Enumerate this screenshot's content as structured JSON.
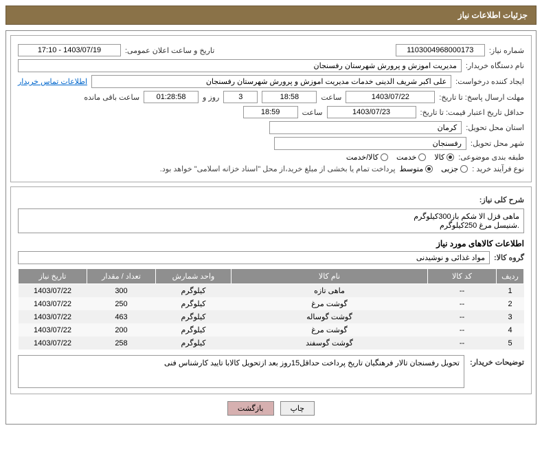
{
  "header": {
    "title": "جزئیات اطلاعات نیاز"
  },
  "fields": {
    "need_no_label": "شماره نیاز:",
    "need_no": "1103004968000173",
    "announce_label": "تاریخ و ساعت اعلان عمومی:",
    "announce_value": "1403/07/19 - 17:10",
    "buyer_org_label": "نام دستگاه خریدار:",
    "buyer_org": "مدیریت اموزش و پرورش شهرستان رفسنجان",
    "requester_label": "ایجاد کننده درخواست:",
    "requester": "علی اکبر شریف الدینی خدمات مدیریت اموزش و پرورش شهرستان رفسنجان",
    "contact_link": "اطلاعات تماس خریدار",
    "reply_deadline_label": "مهلت ارسال پاسخ: تا تاریخ:",
    "reply_date": "1403/07/22",
    "time_label": "ساعت",
    "reply_time": "18:58",
    "days": "3",
    "days_and": "روز و",
    "remaining": "01:28:58",
    "remaining_label": "ساعت باقی مانده",
    "validity_label": "حداقل تاریخ اعتبار قیمت: تا تاریخ:",
    "validity_date": "1403/07/23",
    "validity_time": "18:59",
    "province_label": "استان محل تحویل:",
    "province": "کرمان",
    "city_label": "شهر محل تحویل:",
    "city": "رفسنجان",
    "category_label": "طبقه بندی موضوعی:",
    "cat_goods": "کالا",
    "cat_service": "خدمت",
    "cat_both": "کالا/خدمت",
    "purchase_type_label": "نوع فرآیند خرید :",
    "pt_partial": "جزیی",
    "pt_medium": "متوسط",
    "payment_note": "پرداخت تمام یا بخشی از مبلغ خرید،از محل \"اسناد خزانه اسلامی\" خواهد بود.",
    "desc_label": "شرح کلی نیاز:",
    "desc_value": "ماهی قزل الا شکم باز300کیلوگرم\n.شنیسل مرغ 250کیلوگرم",
    "goods_info_title": "اطلاعات کالاهای مورد نیاز",
    "goods_group_label": "گروه کالا:",
    "goods_group": "مواد غذائی و نوشیدنی",
    "buyer_notes_label": "توضیحات خریدار:",
    "buyer_notes": "تحویل رفسنجان تالار فرهنگیان تاریخ پرداخت حداقل15روز بعد ازتحویل کالابا تایید کارشناس فنی"
  },
  "table": {
    "headers": [
      "ردیف",
      "کد کالا",
      "نام کالا",
      "واحد شمارش",
      "تعداد / مقدار",
      "تاریخ نیاز"
    ],
    "rows": [
      [
        "1",
        "--",
        "ماهی تازه",
        "کیلوگرم",
        "300",
        "1403/07/22"
      ],
      [
        "2",
        "--",
        "گوشت مرغ",
        "کیلوگرم",
        "250",
        "1403/07/22"
      ],
      [
        "3",
        "--",
        "گوشت گوساله",
        "کیلوگرم",
        "463",
        "1403/07/22"
      ],
      [
        "4",
        "--",
        "گوشت مرغ",
        "کیلوگرم",
        "200",
        "1403/07/22"
      ],
      [
        "5",
        "--",
        "گوشت گوسفند",
        "کیلوگرم",
        "258",
        "1403/07/22"
      ]
    ]
  },
  "buttons": {
    "print": "چاپ",
    "back": "بازگشت"
  },
  "colors": {
    "header_bg": "#8a7248",
    "table_header_bg": "#8f8f8f",
    "link": "#0066cc",
    "back_btn": "#d6b0b0"
  }
}
